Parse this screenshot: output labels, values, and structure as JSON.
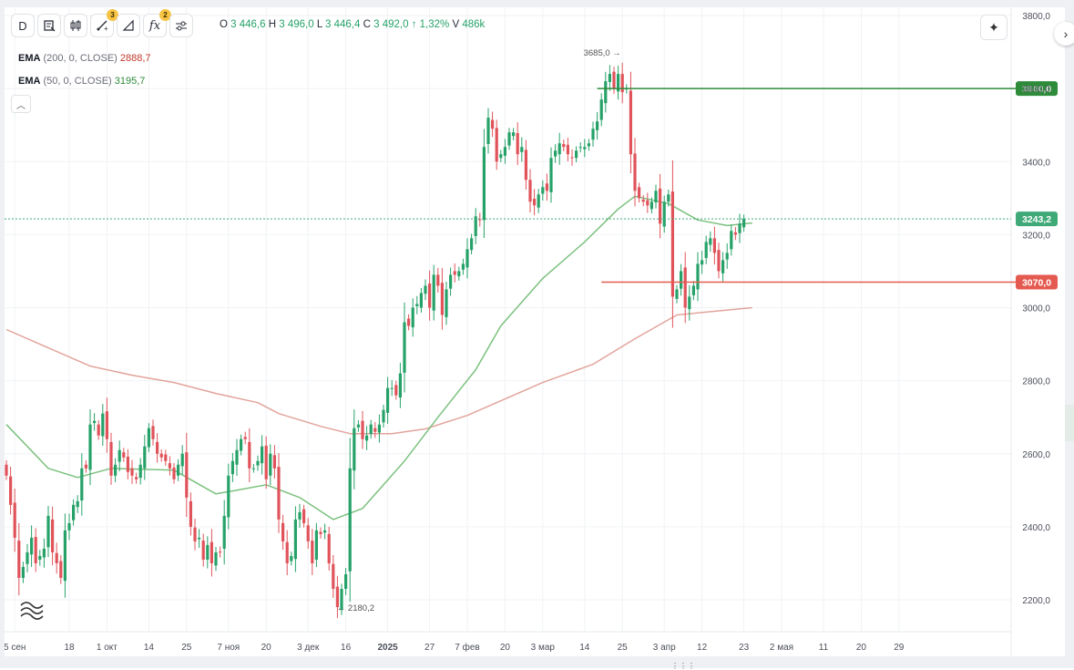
{
  "toolbar": {
    "interval_label": "D",
    "drawings_badge": "3",
    "indicators_badge": "2",
    "indicators_label": "fx"
  },
  "ohlc": {
    "o_label": "O",
    "o": "3 446,6",
    "h_label": "H",
    "h": "3 496,0",
    "l_label": "L",
    "l": "3 446,4",
    "c_label": "C",
    "c": "3 492,0",
    "change": "↑ 1,32%",
    "v_label": "V",
    "v": "486k"
  },
  "indicators": [
    {
      "name": "EMA",
      "params": "(200, 0, CLOSE)",
      "value": "2888,7",
      "color": "#c0392b"
    },
    {
      "name": "EMA",
      "params": "(50, 0, CLOSE)",
      "value": "3195,7",
      "color": "#2e8b3a"
    }
  ],
  "icons": [
    "interval",
    "bar-style-icon",
    "candles-icon",
    "drawing-tools-icon",
    "ruler-icon",
    "indicators-icon",
    "settings-icon",
    "ai-sparkle-icon",
    "chevron-right-icon",
    "collapse-icon",
    "watermark-logo-icon"
  ],
  "colors": {
    "up": "#26a269",
    "down": "#e0535a",
    "ema200": "#e2a49c",
    "ema50": "#7bc17e",
    "level_green": "#2e8b3a",
    "level_red": "#e55a50",
    "price_label": "#3faa78"
  },
  "chart_data": {
    "type": "candlestick",
    "ylim": [
      2100,
      3800
    ],
    "y_ticks": [
      "3800,0",
      "3600,0",
      "3400,0",
      "3200,0",
      "3000,0",
      "2800,0",
      "2600,0",
      "2400,0",
      "2200,0"
    ],
    "y_tick_values": [
      3800,
      3600,
      3400,
      3200,
      3000,
      2800,
      2600,
      2400,
      2200
    ],
    "x_ticks": [
      "5 сен",
      "18",
      "1 окт",
      "14",
      "25",
      "7 ноя",
      "20",
      "3 дек",
      "16",
      "2025",
      "27",
      "7 фев",
      "20",
      "3 мар",
      "14",
      "25",
      "3 апр",
      "12",
      "23",
      "2 мая",
      "11",
      "20",
      "29"
    ],
    "x_tick_index": [
      2,
      15,
      24,
      34,
      43,
      53,
      62,
      72,
      81,
      91,
      101,
      110,
      119,
      128,
      138,
      147,
      157,
      166,
      176,
      185,
      195,
      204,
      213
    ],
    "current_price": "3243,2",
    "current_price_value": 3243.2,
    "levels": [
      {
        "value": 3600,
        "label": "3600,0",
        "color": "#2e8b3a",
        "from_index": 141
      },
      {
        "value": 3070,
        "label": "3070,0",
        "color": "#e55a50",
        "from_index": 142
      }
    ],
    "annotations": [
      {
        "text": "3685,0",
        "value": 3685,
        "index": 148
      },
      {
        "text": "2180,2",
        "value": 2180.2,
        "index": 78
      }
    ],
    "ema200": {
      "name": "EMA (200, 0, CLOSE)",
      "points": [
        [
          0,
          2940
        ],
        [
          10,
          2890
        ],
        [
          20,
          2840
        ],
        [
          30,
          2815
        ],
        [
          40,
          2795
        ],
        [
          50,
          2765
        ],
        [
          60,
          2740
        ],
        [
          65,
          2710
        ],
        [
          75,
          2675
        ],
        [
          82,
          2655
        ],
        [
          92,
          2655
        ],
        [
          100,
          2668
        ],
        [
          110,
          2705
        ],
        [
          118,
          2745
        ],
        [
          128,
          2795
        ],
        [
          140,
          2845
        ],
        [
          150,
          2915
        ],
        [
          160,
          2980
        ],
        [
          178,
          3000
        ]
      ]
    },
    "ema50": {
      "name": "EMA (50, 0, CLOSE)",
      "points": [
        [
          0,
          2680
        ],
        [
          10,
          2560
        ],
        [
          17,
          2535
        ],
        [
          25,
          2560
        ],
        [
          40,
          2555
        ],
        [
          50,
          2490
        ],
        [
          55,
          2500
        ],
        [
          62,
          2515
        ],
        [
          70,
          2480
        ],
        [
          78,
          2420
        ],
        [
          85,
          2450
        ],
        [
          95,
          2580
        ],
        [
          103,
          2700
        ],
        [
          112,
          2830
        ],
        [
          118,
          2950
        ],
        [
          128,
          3080
        ],
        [
          138,
          3180
        ],
        [
          146,
          3270
        ],
        [
          150,
          3305
        ],
        [
          158,
          3285
        ],
        [
          165,
          3240
        ],
        [
          172,
          3225
        ],
        [
          178,
          3232
        ]
      ]
    },
    "close": [
      2540,
      2460,
      2370,
      2260,
      2290,
      2330,
      2370,
      2300,
      2320,
      2340,
      2430,
      2330,
      2300,
      2260,
      2390,
      2410,
      2460,
      2470,
      2560,
      2560,
      2680,
      2690,
      2650,
      2710,
      2640,
      2540,
      2570,
      2610,
      2590,
      2550,
      2540,
      2530,
      2570,
      2620,
      2670,
      2640,
      2600,
      2590,
      2580,
      2560,
      2530,
      2570,
      2600,
      2480,
      2400,
      2360,
      2370,
      2310,
      2350,
      2300,
      2330,
      2330,
      2430,
      2540,
      2580,
      2610,
      2640,
      2640,
      2560,
      2560,
      2580,
      2620,
      2530,
      2600,
      2560,
      2420,
      2360,
      2300,
      2320,
      2420,
      2440,
      2410,
      2360,
      2300,
      2390,
      2380,
      2390,
      2300,
      2230,
      2180,
      2230,
      2270,
      2560,
      2670,
      2680,
      2640,
      2650,
      2680,
      2660,
      2680,
      2720,
      2780,
      2780,
      2760,
      2820,
      2960,
      2950,
      3000,
      3010,
      3040,
      3060,
      3000,
      3090,
      3060,
      2980,
      3050,
      3090,
      3090,
      3100,
      3120,
      3160,
      3190,
      3250,
      3240,
      3440,
      3520,
      3490,
      3400,
      3420,
      3440,
      3480,
      3480,
      3420,
      3440,
      3350,
      3290,
      3280,
      3310,
      3330,
      3320,
      3410,
      3430,
      3450,
      3440,
      3420,
      3410,
      3430,
      3440,
      3440,
      3450,
      3490,
      3510,
      3570,
      3620,
      3640,
      3600,
      3640,
      3590,
      3600,
      3420,
      3320,
      3300,
      3290,
      3280,
      3290,
      3320,
      3230,
      3290,
      3310,
      3030,
      3050,
      3100,
      3000,
      3030,
      3060,
      3120,
      3130,
      3180,
      3190,
      3150,
      3100,
      3130,
      3150,
      3210,
      3200,
      3230,
      3243
    ]
  }
}
